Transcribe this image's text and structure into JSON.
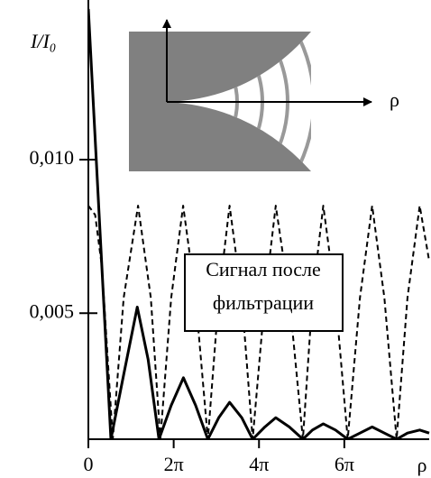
{
  "chart_data": {
    "type": "line",
    "ylabel": "I/I₀",
    "xlabel": "ρ",
    "xlim": [
      0,
      25.1
    ],
    "ylim": [
      0.0009,
      0.0149
    ],
    "xticks": [
      {
        "value": 0,
        "label": "0"
      },
      {
        "value": 6.2832,
        "label": "2π"
      },
      {
        "value": 12.5664,
        "label": "4π"
      },
      {
        "value": 18.8496,
        "label": "6π"
      }
    ],
    "yticks": [
      {
        "value": 0.005,
        "label": "0,005"
      },
      {
        "value": 0.01,
        "label": "0,010"
      }
    ],
    "series": [
      {
        "color": "#000000",
        "style": "solid",
        "x": [
          0,
          1.66,
          2.6,
          3.6,
          4.4,
          5.2,
          6.1,
          7.0,
          7.9,
          8.8,
          9.6,
          10.4,
          11.3,
          12.1,
          13.0,
          13.8,
          14.8,
          15.8,
          16.5,
          17.3,
          18.2,
          19.1,
          20.0,
          20.9,
          21.8,
          22.7,
          23.5,
          24.4,
          25.1
        ],
        "values": [
          0.0149,
          0.0009,
          0.003,
          0.0052,
          0.0035,
          0.0009,
          0.002,
          0.0029,
          0.002,
          0.0009,
          0.0016,
          0.0021,
          0.0016,
          0.0009,
          0.0013,
          0.0016,
          0.0013,
          0.0009,
          0.0012,
          0.0014,
          0.0012,
          0.0009,
          0.0011,
          0.0013,
          0.0011,
          0.0009,
          0.0011,
          0.0012,
          0.0011
        ]
      },
      {
        "color": "#000000",
        "style": "dashed",
        "x": [
          0,
          0.5,
          1.0,
          1.8,
          2.6,
          3.66,
          4.6,
          5.3,
          6.1,
          6.98,
          7.9,
          8.8,
          9.6,
          10.4,
          11.3,
          12.1,
          13.0,
          13.8,
          14.8,
          15.8,
          16.5,
          17.3,
          18.2,
          19.1,
          20.0,
          20.9,
          21.8,
          22.7,
          23.5,
          24.4,
          25.1
        ],
        "values": [
          0.0085,
          0.0082,
          0.0065,
          0.0009,
          0.0055,
          0.0085,
          0.0055,
          0.0009,
          0.0055,
          0.0085,
          0.0055,
          0.0009,
          0.0055,
          0.0085,
          0.0055,
          0.0009,
          0.0055,
          0.0085,
          0.0055,
          0.0009,
          0.0055,
          0.0085,
          0.0055,
          0.0009,
          0.0055,
          0.0085,
          0.0055,
          0.0009,
          0.0055,
          0.0085,
          0.0067
        ]
      }
    ],
    "annotation": [
      "Сигнал после",
      "фильтрации"
    ],
    "inset_label": "ρ"
  }
}
